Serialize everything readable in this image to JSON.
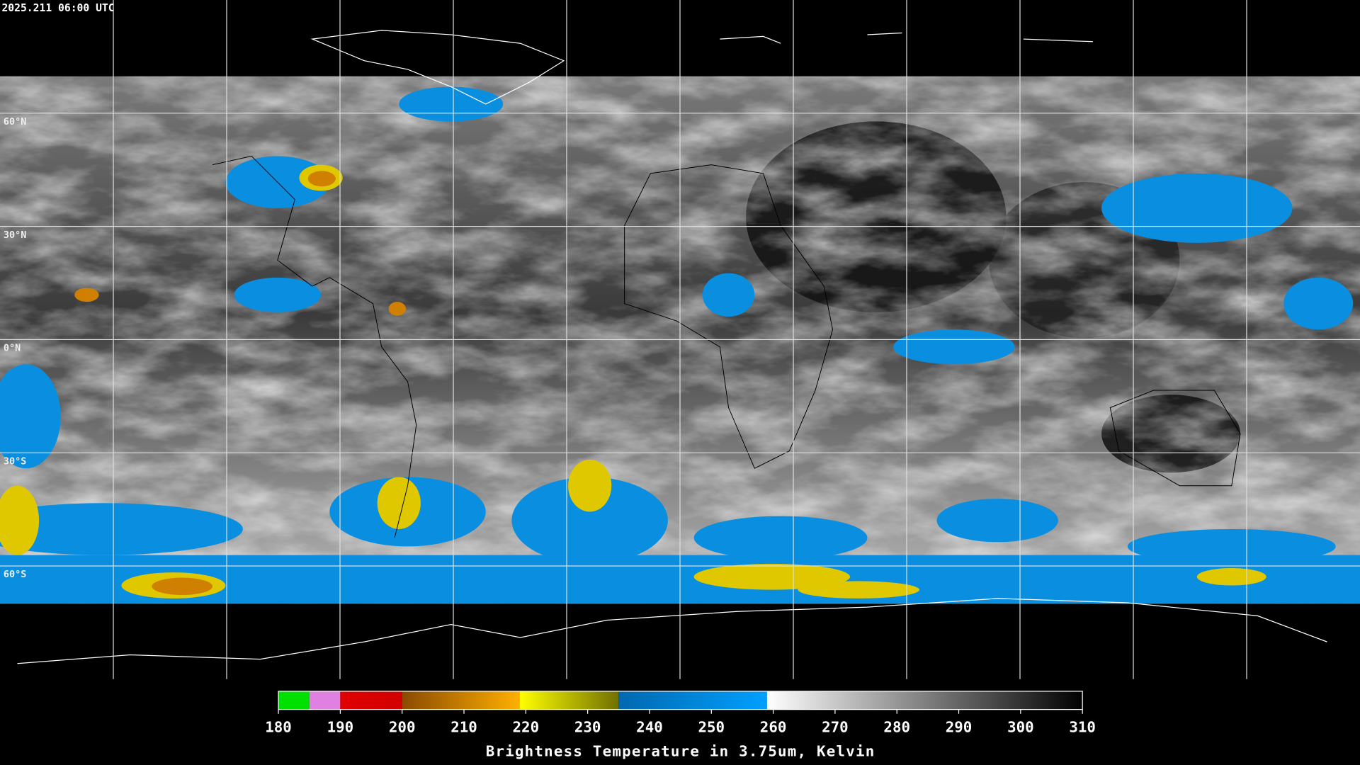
{
  "header": {
    "timestamp": "2025.211 06:00 UTC"
  },
  "map": {
    "lat_range": [
      90,
      -90
    ],
    "latitudes": [
      {
        "value": 60,
        "label": "60°N"
      },
      {
        "value": 30,
        "label": "30°N"
      },
      {
        "value": 0,
        "label": "0°N"
      },
      {
        "value": -30,
        "label": "30°S"
      },
      {
        "value": -60,
        "label": "60°S"
      }
    ]
  },
  "colorbar": {
    "title": "Brightness Temperature in 3.75um, Kelvin",
    "range": [
      180,
      310
    ],
    "ticks": [
      180,
      190,
      200,
      210,
      220,
      230,
      240,
      250,
      260,
      270,
      280,
      290,
      300,
      310
    ],
    "segments": [
      {
        "from": 180,
        "to": 185,
        "colors": [
          "#00e000",
          "#00e000"
        ]
      },
      {
        "from": 185,
        "to": 190,
        "colors": [
          "#e080e0",
          "#e080e0"
        ]
      },
      {
        "from": 190,
        "to": 200,
        "colors": [
          "#e00000",
          "#d00000"
        ]
      },
      {
        "from": 200,
        "to": 219,
        "colors": [
          "#8a4a00",
          "#ffb000"
        ]
      },
      {
        "from": 219,
        "to": 235,
        "colors": [
          "#ffff00",
          "#707000"
        ]
      },
      {
        "from": 235,
        "to": 259,
        "colors": [
          "#0068b0",
          "#00a0ff"
        ]
      },
      {
        "from": 259,
        "to": 310,
        "colors": [
          "#ffffff",
          "#000000"
        ]
      }
    ]
  }
}
